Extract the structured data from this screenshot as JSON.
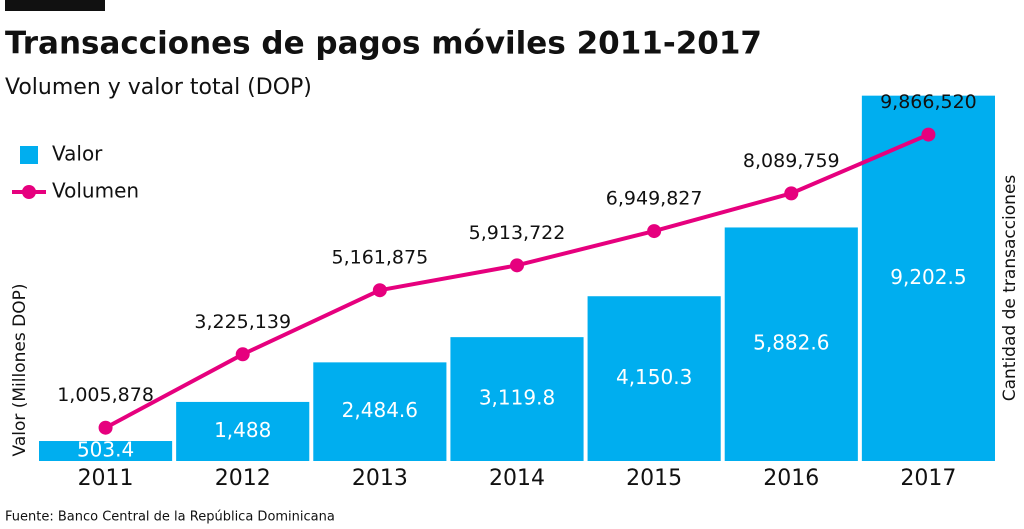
{
  "chart_data": {
    "type": "bar",
    "title": "Transacciones de pagos móviles 2011-2017",
    "subtitle": "Volumen y valor total (DOP)",
    "y_label": "Valor (Millones DOP)",
    "y2_label": "Cantidad de transacciones",
    "source": "Fuente: Banco Central de la República Dominicana",
    "categories": [
      "2011",
      "2012",
      "2013",
      "2014",
      "2015",
      "2016",
      "2017"
    ],
    "series": [
      {
        "name": "Valor",
        "type": "bar",
        "color": "#00aeef",
        "values": [
          503.4,
          1488,
          2484.6,
          3119.8,
          4150.3,
          5882.6,
          9202.5
        ],
        "value_labels": [
          "503.4",
          "1,488",
          "2,484.6",
          "3,119.8",
          "4,150.3",
          "5,882.6",
          "9,202.5"
        ]
      },
      {
        "name": "Volumen",
        "type": "line",
        "axis": "y2",
        "color": "#e6007e",
        "values": [
          1005878,
          3225139,
          5161875,
          5913722,
          6949827,
          8089759,
          9866520
        ],
        "value_labels": [
          "1,005,878",
          "3,225,139",
          "5,161,875",
          "5,913,722",
          "6,949,827",
          "8,089,759",
          "9,866,520"
        ]
      }
    ],
    "ylim": [
      0,
      10000
    ],
    "y2lim": [
      0,
      12000000
    ],
    "legend": "top-left"
  }
}
